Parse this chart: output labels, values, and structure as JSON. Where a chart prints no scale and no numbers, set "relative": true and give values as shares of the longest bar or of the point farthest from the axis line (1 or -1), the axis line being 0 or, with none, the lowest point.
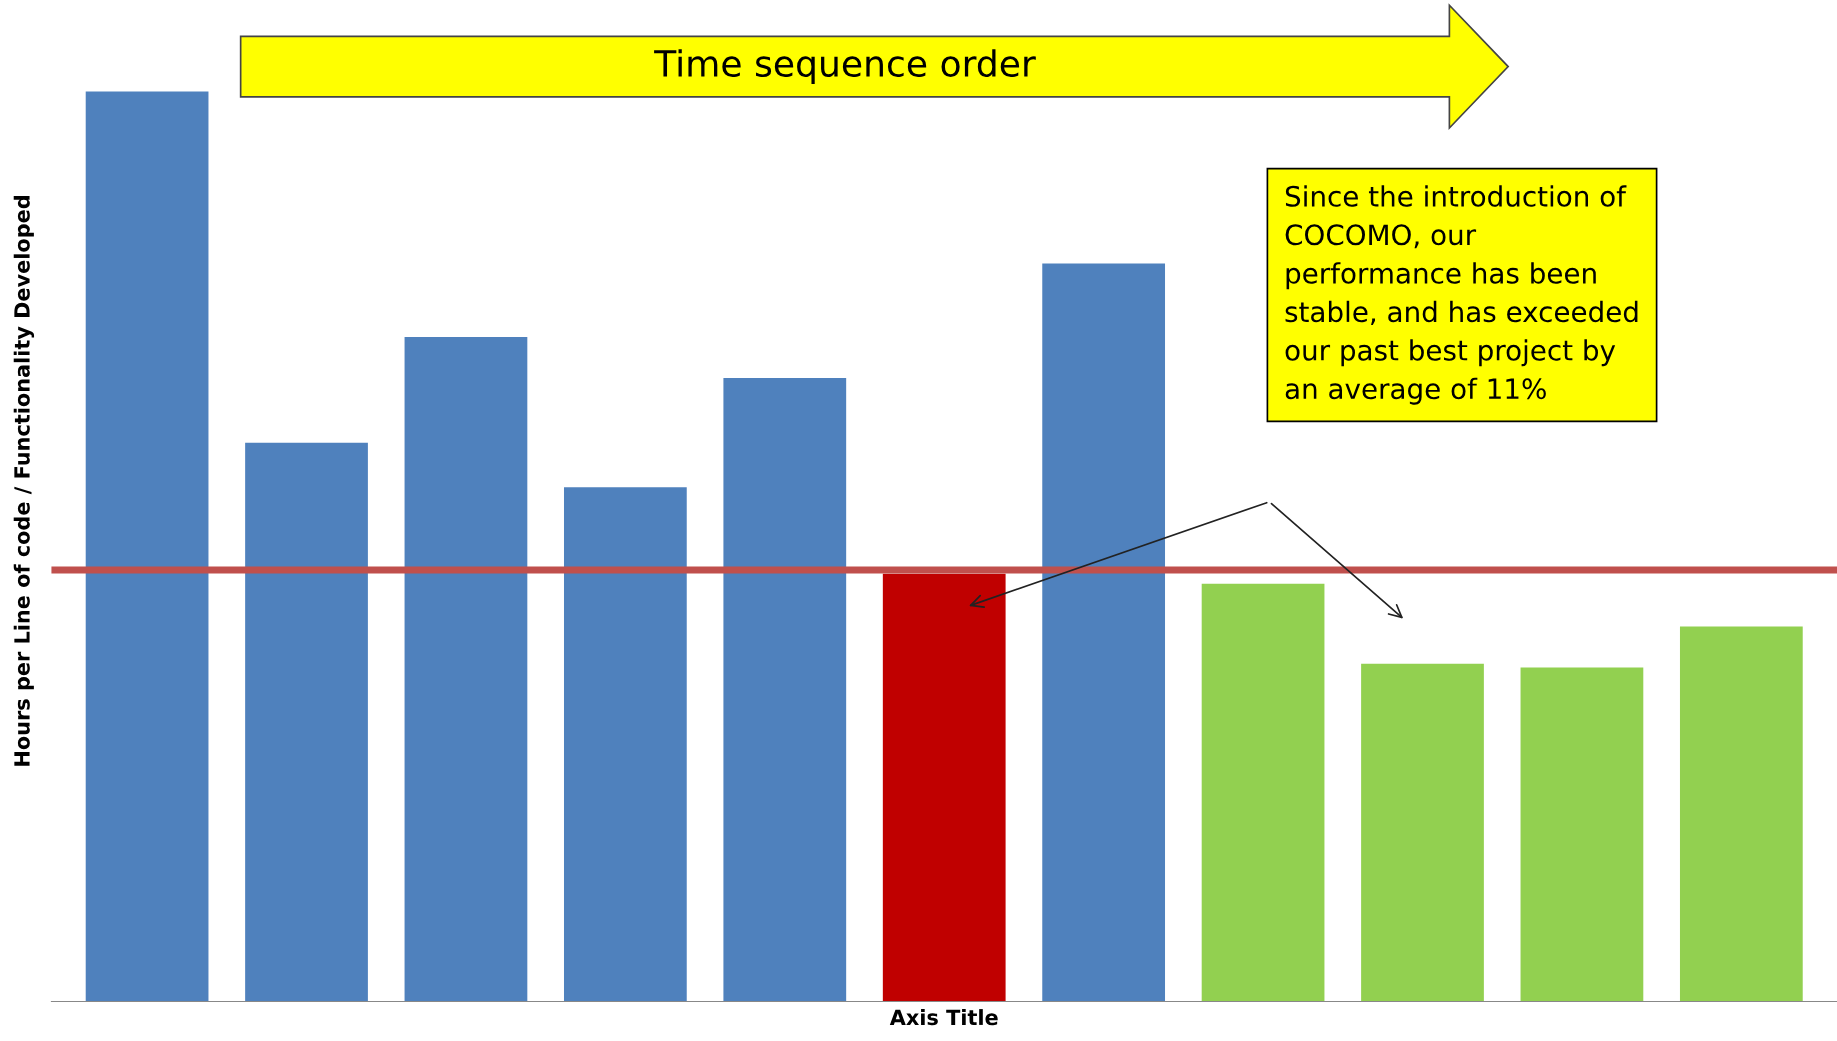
{
  "chart_data": {
    "type": "bar",
    "relative": true,
    "categories": [
      null,
      null,
      null,
      null,
      null,
      null,
      null,
      null,
      null,
      null,
      null
    ],
    "values": [
      1,
      0.614,
      0.73,
      0.565,
      0.685,
      0.47,
      0.811,
      0.459,
      0.371,
      0.367,
      0.412
    ],
    "colors": [
      "#4f81bd",
      "#4f81bd",
      "#4f81bd",
      "#4f81bd",
      "#4f81bd",
      "#c00000",
      "#4f81bd",
      "#92d050",
      "#92d050",
      "#92d050",
      "#92d050"
    ],
    "xlabel": "Axis Title",
    "ylabel": "Hours per Line of code / Functionality Developed",
    "ref_lines": [
      {
        "axis": "y",
        "value": 0.474,
        "color": "#c0504d"
      }
    ],
    "annotations": [
      "Time sequence order",
      "Since the introduction of\nCOCOMO, our\nperformance has been\nstable, and has exceeded\nour past best project by\nan average of 11%"
    ]
  }
}
